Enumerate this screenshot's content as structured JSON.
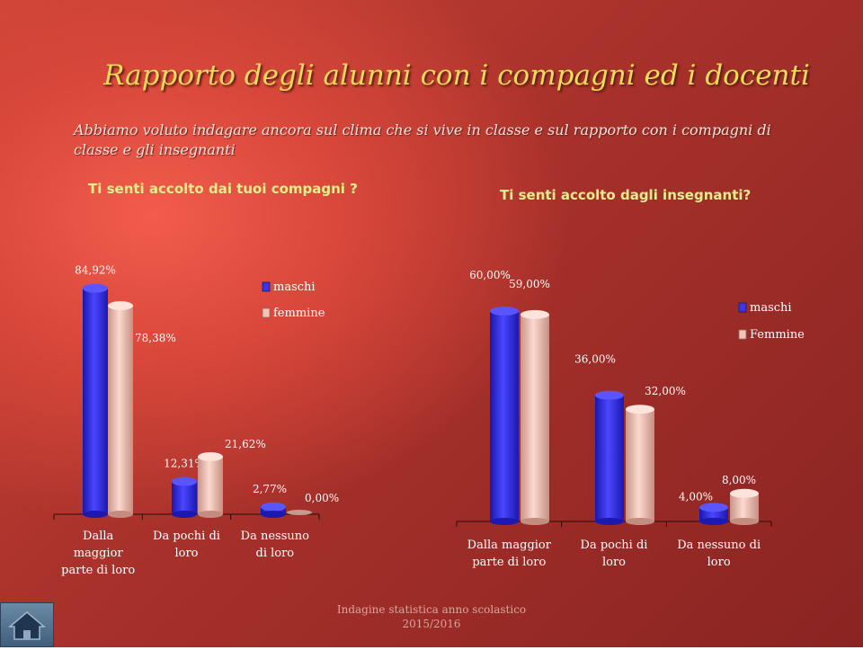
{
  "slide": {
    "title": "Rapporto degli alunni con i compagni ed i docenti",
    "subtitle": "Abbiamo voluto indagare ancora sul clima che si vive in classe  e sul rapporto con i compagni di classe e gli insegnanti",
    "footer_line1": "Indagine statistica  anno scolastico",
    "footer_line2": "2015/2016"
  },
  "colors": {
    "maschi": "#3a36e8",
    "femmine": "#f2c4b8",
    "title": "#f1dc5a",
    "question": "#e3f08a"
  },
  "icons": {
    "home": "home-icon"
  },
  "chart_data": [
    {
      "type": "bar",
      "title": "Ti senti accolto dai tuoi compagni ?",
      "categories": [
        "Dalla maggior parte di loro",
        "Da pochi di loro",
        "Da nessuno di loro"
      ],
      "category_lines": [
        [
          "Dalla",
          "maggior",
          "parte di loro"
        ],
        [
          "Da pochi di",
          "loro"
        ],
        [
          "Da nessuno",
          "di loro"
        ]
      ],
      "series": [
        {
          "name": "maschi",
          "values": [
            84.92,
            12.31,
            2.77
          ],
          "labels": [
            "84,92%",
            "12,31%",
            "2,77%"
          ]
        },
        {
          "name": "femmine",
          "values": [
            78.38,
            21.62,
            0.0
          ],
          "labels": [
            "78,38%",
            "21,62%",
            "0,00%"
          ]
        }
      ],
      "ylim": [
        0,
        100
      ],
      "legend": "right"
    },
    {
      "type": "bar",
      "title": "Ti senti accolto dagli insegnanti?",
      "categories": [
        "Dalla maggior parte di loro",
        "Da pochi di loro",
        "Da nessuno di loro"
      ],
      "category_lines": [
        [
          "Dalla maggior",
          "parte di loro"
        ],
        [
          "Da pochi di",
          "loro"
        ],
        [
          "Da nessuno di",
          "loro"
        ]
      ],
      "series": [
        {
          "name": "maschi",
          "values": [
            60.0,
            36.0,
            4.0
          ],
          "labels": [
            "60,00%",
            "36,00%",
            "4,00%"
          ]
        },
        {
          "name": "Femmine",
          "values": [
            59.0,
            32.0,
            8.0
          ],
          "labels": [
            "59,00%",
            "32,00%",
            "8,00%"
          ]
        }
      ],
      "ylim": [
        0,
        100
      ],
      "legend": "right"
    }
  ]
}
